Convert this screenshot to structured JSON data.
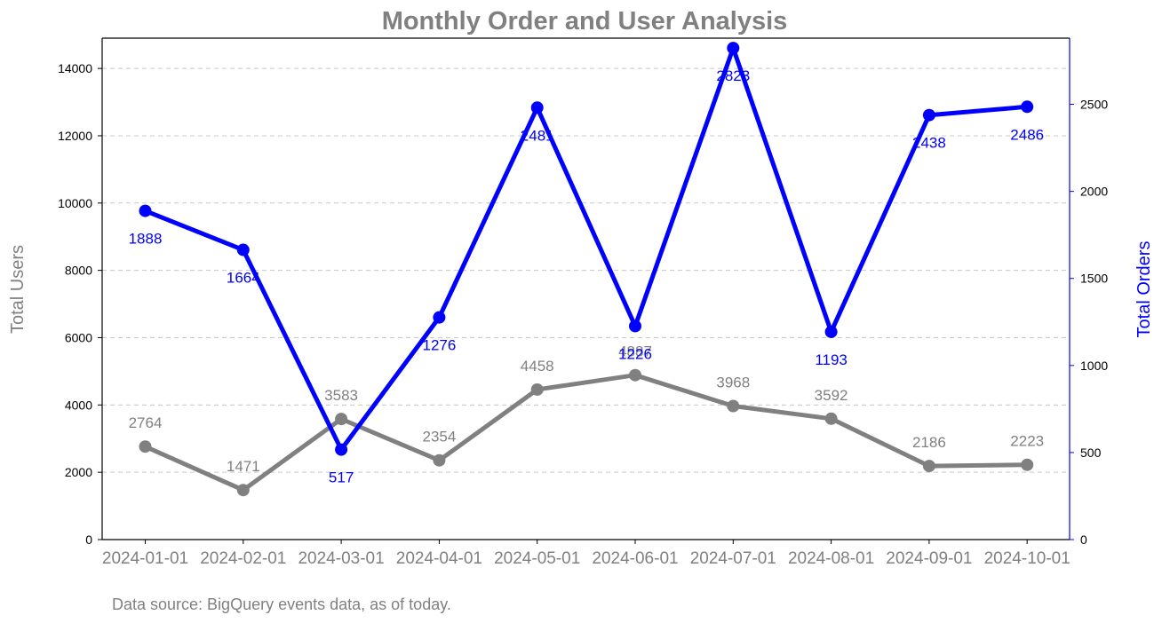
{
  "chart_data": {
    "type": "line",
    "title": "Monthly Order and User Analysis",
    "x": [
      "2024-01-01",
      "2024-02-01",
      "2024-03-01",
      "2024-04-01",
      "2024-05-01",
      "2024-06-01",
      "2024-07-01",
      "2024-08-01",
      "2024-09-01",
      "2024-10-01"
    ],
    "series": [
      {
        "axis": "left",
        "color": "#808080",
        "values": [
          2764,
          1471,
          3583,
          2354,
          4458,
          4887,
          3968,
          3592,
          2186,
          2223
        ]
      },
      {
        "axis": "right",
        "color": "#0000ff",
        "values": [
          1888,
          1664,
          517,
          1276,
          2481,
          1226,
          2823,
          1193,
          2438,
          2486
        ]
      }
    ],
    "ylabel_left": "Total Users",
    "ylabel_right": "Total Orders",
    "ylim_left": [
      0,
      14900
    ],
    "ylim_right": [
      0,
      2880
    ],
    "yticks_left": [
      0,
      2000,
      4000,
      6000,
      8000,
      10000,
      12000,
      14000
    ],
    "yticks_right": [
      0,
      500,
      1000,
      1500,
      2000,
      2500
    ],
    "grid": "horizontal-dashed",
    "legend": "none"
  },
  "footnote": "Data source: BigQuery events data, as of today."
}
